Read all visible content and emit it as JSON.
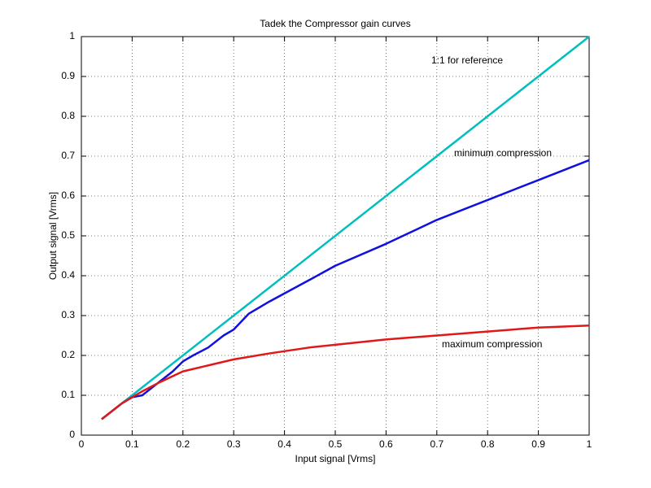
{
  "chart_data": {
    "type": "line",
    "title": "Tadek the Compressor gain curves",
    "x_label": "Input signal [Vrms]",
    "y_label": "Output signal [Vrms]",
    "annotations": [
      "1:1 for reference",
      "minimum compression",
      "maximum compression"
    ],
    "series": [
      {
        "color": "#00bfbf",
        "x": [
          0.04,
          1
        ],
        "values": [
          0.04,
          1
        ]
      },
      {
        "color": "#1010e0",
        "x": [
          0.04,
          0.06,
          0.08,
          0.1,
          0.12,
          0.14,
          0.16,
          0.18,
          0.2,
          0.22,
          0.25,
          0.28,
          0.3,
          0.33,
          0.37,
          0.45,
          0.5,
          0.6,
          0.7,
          0.8,
          0.9,
          1
        ],
        "values": [
          0.04,
          0.06,
          0.08,
          0.095,
          0.1,
          0.12,
          0.14,
          0.16,
          0.185,
          0.2,
          0.22,
          0.25,
          0.265,
          0.305,
          0.335,
          0.39,
          0.425,
          0.48,
          0.54,
          0.59,
          0.64,
          0.69
        ]
      },
      {
        "color": "#e01818",
        "x": [
          0.04,
          0.06,
          0.08,
          0.1,
          0.12,
          0.15,
          0.2,
          0.25,
          0.3,
          0.37,
          0.45,
          0.6,
          0.7,
          0.8,
          0.9,
          1
        ],
        "values": [
          0.04,
          0.06,
          0.08,
          0.095,
          0.11,
          0.13,
          0.16,
          0.175,
          0.19,
          0.205,
          0.22,
          0.24,
          0.25,
          0.26,
          0.27,
          0.275
        ]
      }
    ],
    "xlim": [
      0,
      1
    ],
    "ylim": [
      0,
      1
    ],
    "xticks": [
      0,
      0.1,
      0.2,
      0.3,
      0.4,
      0.5,
      0.6,
      0.7,
      0.8,
      0.9,
      1
    ],
    "yticks": [
      0,
      0.1,
      0.2,
      0.3,
      0.4,
      0.5,
      0.6,
      0.7,
      0.8,
      0.9,
      1
    ],
    "grid": true
  }
}
